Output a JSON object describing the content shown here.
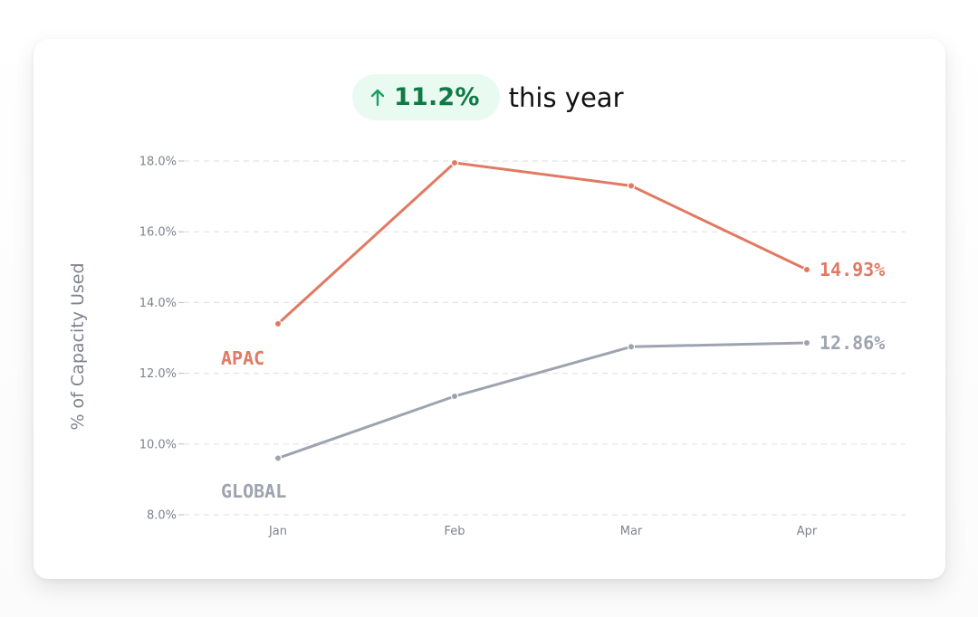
{
  "headline": {
    "change_value": "11.2%",
    "change_icon": "arrow-up-icon",
    "suffix": "this year",
    "accent_color": "#0f7a45",
    "pill_color": "#e9faf0"
  },
  "chart_data": {
    "type": "line",
    "categories": [
      "Jan",
      "Feb",
      "Mar",
      "Apr"
    ],
    "ylabel": "% of Capacity Used",
    "xlabel": "",
    "ylim": [
      8,
      18
    ],
    "yticks": [
      8,
      10,
      12,
      14,
      16,
      18
    ],
    "ytick_labels": [
      "8.0%",
      "10.0%",
      "12.0%",
      "14.0%",
      "16.0%",
      "18.0%"
    ],
    "grid": true,
    "legend": "inline",
    "series": [
      {
        "name": "APAC",
        "values": [
          13.4,
          17.95,
          17.3,
          14.93
        ],
        "end_label": "14.93%",
        "color": "#e07a62"
      },
      {
        "name": "GLOBAL",
        "values": [
          9.6,
          11.35,
          12.75,
          12.86
        ],
        "end_label": "12.86%",
        "color": "#9ea3b0"
      }
    ]
  }
}
